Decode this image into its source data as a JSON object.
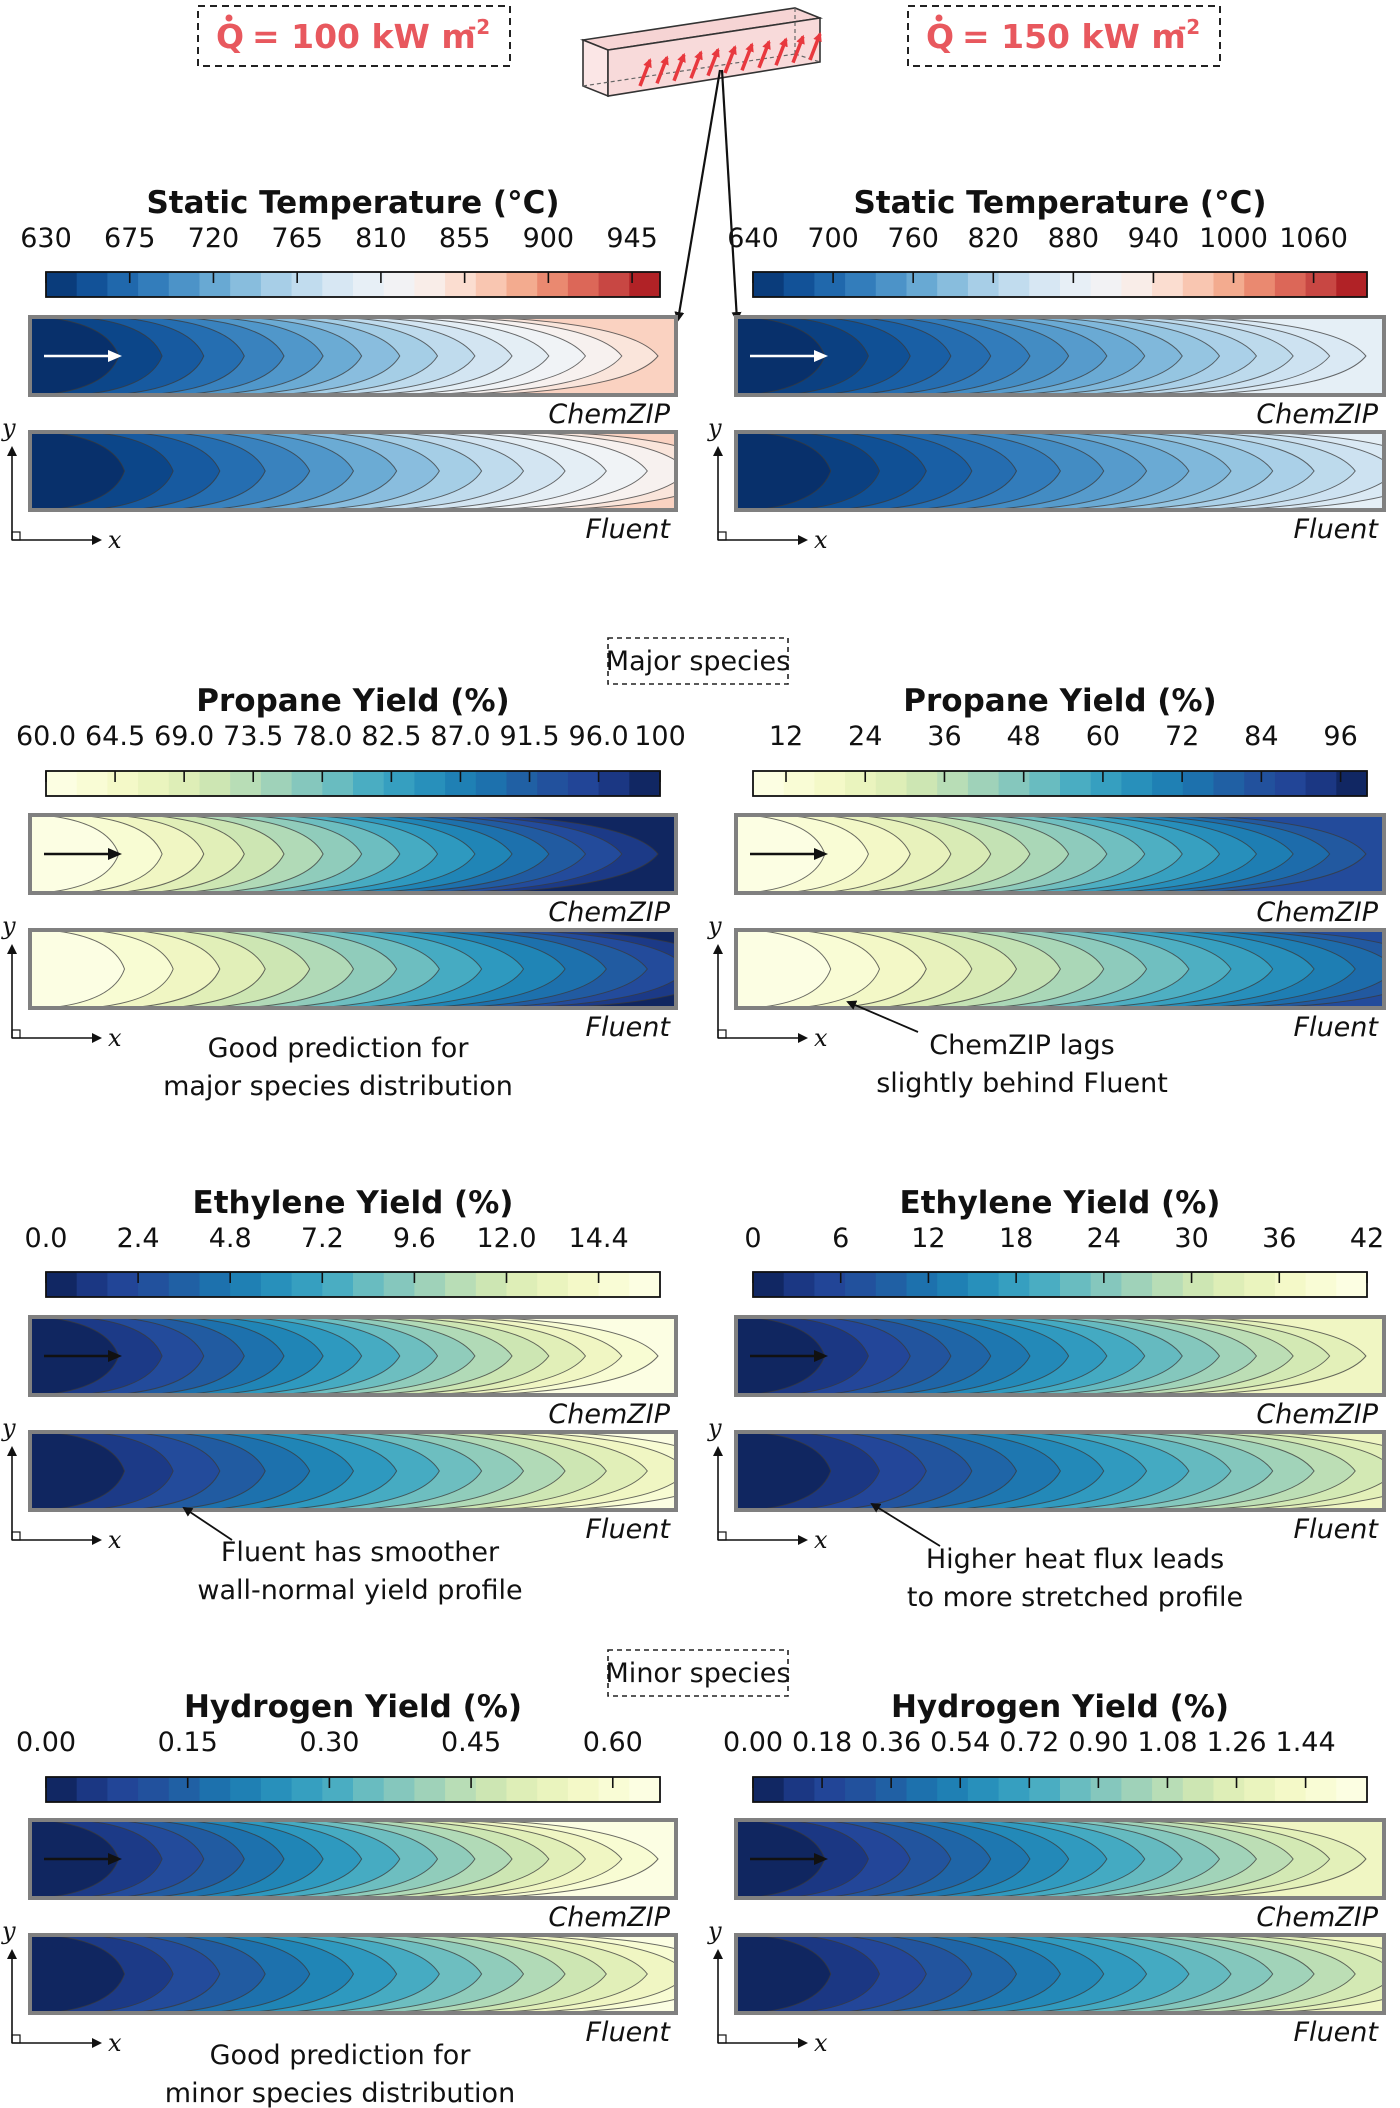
{
  "heat_flux": {
    "left": {
      "symbol": "Q",
      "eq": "= 100 kW m",
      "exp": "-2"
    },
    "right": {
      "symbol": "Q",
      "eq": "= 150 kW m",
      "exp": "-2"
    }
  },
  "sections": {
    "major": "Major species",
    "minor": "Minor species"
  },
  "model_labels": {
    "top": "ChemZIP",
    "bottom": "Fluent"
  },
  "axis_labels": {
    "x": "x",
    "y": "y"
  },
  "palettes": {
    "rdbu": [
      "#08306b",
      "#0d4a8f",
      "#1b62a8",
      "#2f79b9",
      "#4a92c7",
      "#6aaad4",
      "#8dc0df",
      "#afd3e9",
      "#cbe1f0",
      "#e0ecf5",
      "#eff3f7",
      "#f8f1ee",
      "#fbe1d5",
      "#f9c8b3",
      "#f3a98d",
      "#e8836b",
      "#d85e52",
      "#c03a3b",
      "#a50f15"
    ],
    "ylgnbu": [
      "#0c1f52",
      "#1a3580",
      "#23479a",
      "#22579f",
      "#1d6eac",
      "#1f83b5",
      "#2d98bf",
      "#45abc2",
      "#6ebec0",
      "#92cdbb",
      "#b4dbb6",
      "#d1e8b3",
      "#e5f1b9",
      "#f3f8c6",
      "#fafdd7",
      "#fdfee8"
    ]
  },
  "colors": {
    "flux_red": "#e8585e",
    "frame_gray": "#808080"
  },
  "annotations": {
    "propane_left": [
      "Good prediction for",
      "major species distribution"
    ],
    "propane_right": [
      "ChemZIP lags",
      "slightly behind Fluent"
    ],
    "ethylene_left": [
      "Fluent has smoother",
      "wall-normal yield profile"
    ],
    "ethylene_right": [
      "Higher heat flux leads",
      "to more stretched profile"
    ],
    "hydrogen_left": [
      "Good prediction for",
      "minor species distribution"
    ]
  },
  "panels": [
    {
      "title": "Static Temperature (°C)",
      "ticks": [
        "630",
        "675",
        "720",
        "765",
        "810",
        "855",
        "900",
        "945"
      ],
      "tick_values": [
        630,
        675,
        720,
        765,
        810,
        855,
        900,
        945
      ],
      "range": [
        630,
        960
      ],
      "palette": "rdbu",
      "reverse": false,
      "level_range": [
        0.0,
        0.7
      ]
    },
    {
      "title": "Static Temperature (°C)",
      "ticks": [
        "640",
        "700",
        "760",
        "820",
        "880",
        "940",
        "1000",
        "1060"
      ],
      "tick_values": [
        640,
        700,
        760,
        820,
        880,
        940,
        1000,
        1060
      ],
      "range": [
        640,
        1100
      ],
      "palette": "rdbu",
      "reverse": false,
      "level_range": [
        0.0,
        0.52
      ]
    },
    {
      "title": "Propane Yield (%)",
      "ticks": [
        "60.0",
        "64.5",
        "69.0",
        "73.5",
        "78.0",
        "82.5",
        "87.0",
        "91.5",
        "96.0",
        "100"
      ],
      "tick_values": [
        60,
        64.5,
        69,
        73.5,
        78,
        82.5,
        87,
        91.5,
        96,
        100
      ],
      "range": [
        60,
        100
      ],
      "palette": "ylgnbu",
      "reverse": true,
      "level_range": [
        0.02,
        0.98
      ]
    },
    {
      "title": "Propane Yield (%)",
      "ticks": [
        "12",
        "24",
        "36",
        "48",
        "60",
        "72",
        "84",
        "96"
      ],
      "tick_values": [
        12,
        24,
        36,
        48,
        60,
        72,
        84,
        96
      ],
      "range": [
        7,
        100
      ],
      "palette": "ylgnbu",
      "reverse": true,
      "level_range": [
        0.02,
        0.85
      ]
    },
    {
      "title": "Ethylene Yield (%)",
      "ticks": [
        "0.0",
        "2.4",
        "4.8",
        "7.2",
        "9.6",
        "12.0",
        "14.4"
      ],
      "tick_values": [
        0,
        2.4,
        4.8,
        7.2,
        9.6,
        12.0,
        14.4
      ],
      "range": [
        0,
        16
      ],
      "palette": "ylgnbu",
      "reverse": false,
      "level_range": [
        0.02,
        0.98
      ]
    },
    {
      "title": "Ethylene Yield (%)",
      "ticks": [
        "0",
        "6",
        "12",
        "18",
        "24",
        "30",
        "36",
        "42"
      ],
      "tick_values": [
        0,
        6,
        12,
        18,
        24,
        30,
        36,
        42
      ],
      "range": [
        0,
        42
      ],
      "palette": "ylgnbu",
      "reverse": false,
      "level_range": [
        0.02,
        0.85
      ]
    },
    {
      "title": "Hydrogen Yield (%)",
      "ticks": [
        "0.00",
        "0.15",
        "0.30",
        "0.45",
        "0.60"
      ],
      "tick_values": [
        0,
        0.15,
        0.3,
        0.45,
        0.6
      ],
      "range": [
        0,
        0.65
      ],
      "palette": "ylgnbu",
      "reverse": false,
      "level_range": [
        0.02,
        0.98
      ]
    },
    {
      "title": "Hydrogen Yield (%)",
      "ticks": [
        "0.00",
        "0.18",
        "0.36",
        "0.54",
        "0.72",
        "0.90",
        "1.08",
        "1.26",
        "1.44"
      ],
      "tick_values": [
        0,
        0.18,
        0.36,
        0.54,
        0.72,
        0.9,
        1.08,
        1.26,
        1.44
      ],
      "range": [
        0,
        1.6
      ],
      "palette": "ylgnbu",
      "reverse": false,
      "level_range": [
        0.02,
        0.85
      ]
    }
  ]
}
